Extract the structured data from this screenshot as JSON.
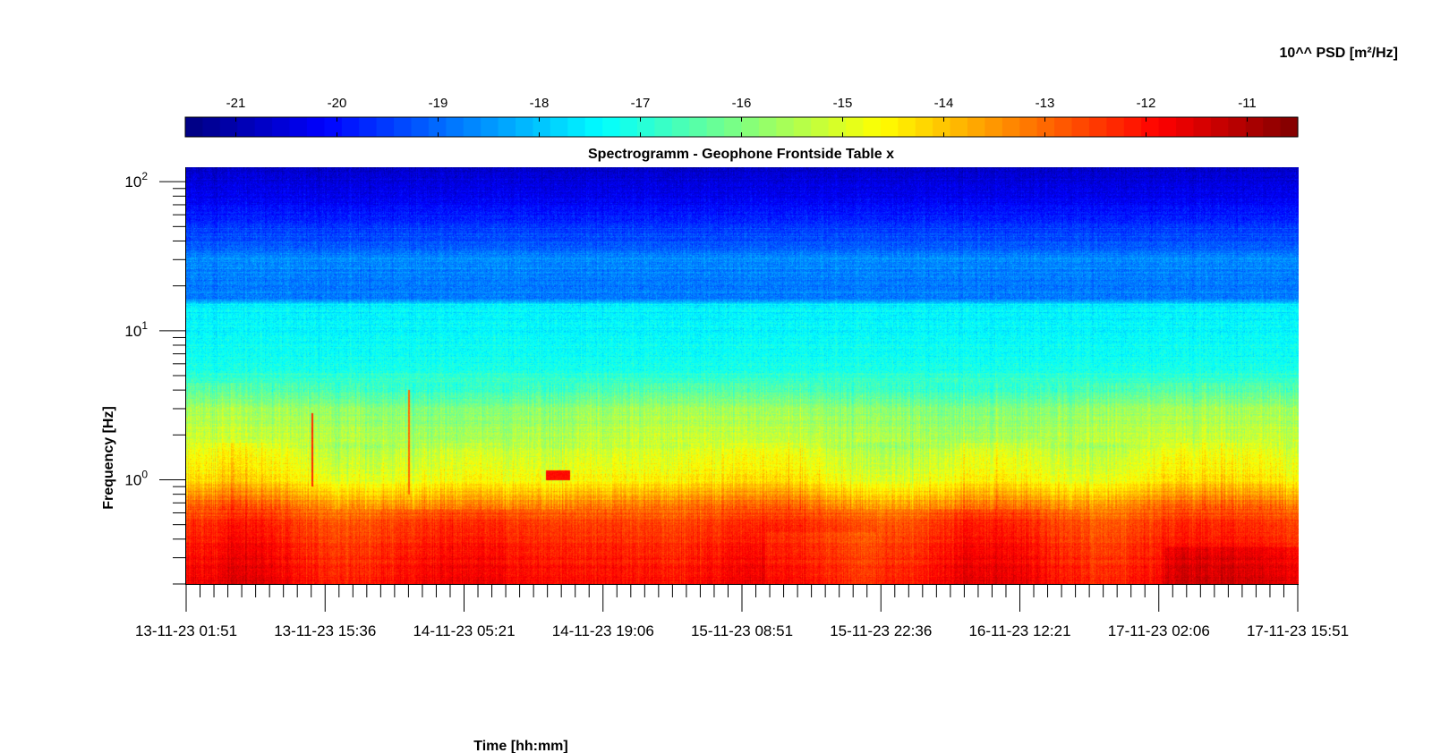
{
  "chart_data": {
    "type": "heatmap",
    "title": "Spectrogramm - Geophone Frontside Table x",
    "xlabel": "Time [hh:mm]",
    "ylabel": "Frequency [Hz]",
    "colorbar_label": "10^^ PSD [m²/Hz]",
    "colormap": "jet",
    "color_range": [
      -21.5,
      -10.5
    ],
    "colorbar_ticks": [
      "-21",
      "-20",
      "-19",
      "-18",
      "-17",
      "-16",
      "-15",
      "-14",
      "-13",
      "-12",
      "-11"
    ],
    "colorbar_tick_values": [
      -21,
      -20,
      -19,
      -18,
      -17,
      -16,
      -15,
      -14,
      -13,
      -12,
      -11
    ],
    "y_scale": "log",
    "ylim": [
      0.2,
      125
    ],
    "y_tick_values": [
      1,
      10,
      100
    ],
    "y_tick_labels": [
      {
        "base": "10",
        "exp": "0"
      },
      {
        "base": "10",
        "exp": "1"
      },
      {
        "base": "10",
        "exp": "2"
      }
    ],
    "xlim": [
      "13-11-23 01:51",
      "17-11-23 15:51"
    ],
    "x_tick_labels": [
      "13-11-23 01:51",
      "13-11-23 15:36",
      "14-11-23 05:21",
      "14-11-23 19:06",
      "15-11-23 08:51",
      "15-11-23 22:36",
      "16-11-23 12:21",
      "17-11-23 02:06",
      "17-11-23 15:51"
    ],
    "psd_profile": {
      "description": "approximate median log10 PSD vs frequency",
      "frequency_hz": [
        0.2,
        0.3,
        0.5,
        0.7,
        1.0,
        1.5,
        3.0,
        4.0,
        6.0,
        10,
        15,
        16,
        20,
        30,
        35,
        50,
        80,
        100,
        125
      ],
      "log10_psd": [
        -11.9,
        -12.1,
        -12.4,
        -13.3,
        -14.6,
        -15.1,
        -15.8,
        -16.6,
        -17.2,
        -17.4,
        -17.5,
        -18.7,
        -18.8,
        -18.6,
        -19.0,
        -19.6,
        -20.3,
        -20.5,
        -20.8
      ]
    },
    "features": [
      {
        "type": "transient",
        "time": "13-11-23 14:30",
        "frequency_hz": [
          0.9,
          2.8
        ],
        "log10_psd": -12.3
      },
      {
        "type": "transient",
        "time": "14-11-23 00:15",
        "frequency_hz": [
          0.8,
          4.0
        ],
        "log10_psd": -13.0
      },
      {
        "type": "burst",
        "time": [
          "14-11-23 14:00",
          "14-11-23 16:30"
        ],
        "frequency_hz": [
          1.0,
          1.15
        ],
        "log10_psd": -12.0
      }
    ]
  }
}
